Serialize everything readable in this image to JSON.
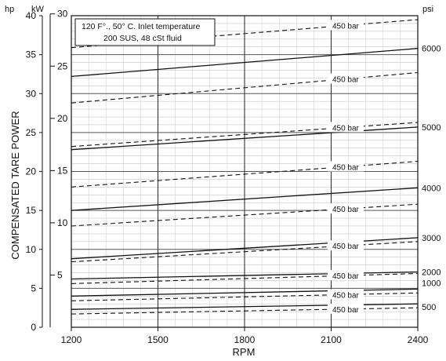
{
  "chart_data": {
    "type": "line",
    "title": "",
    "xlabel": "RPM",
    "ylabel": "COMPENSATED TARE POWER",
    "x_ticks": [
      1200,
      1500,
      1800,
      2100,
      2400
    ],
    "xlim": [
      1200,
      2400
    ],
    "units": {
      "hp": "hp",
      "kw": "kW",
      "psi": "psi"
    },
    "hp_ticks": [
      0,
      5,
      10,
      15,
      20,
      25,
      30,
      35,
      40
    ],
    "kw_ticks": [
      5,
      10,
      15,
      20,
      25,
      30
    ],
    "psi_ticks": [
      500,
      1000,
      2000,
      3000,
      4000,
      5000,
      6000
    ],
    "ylim_hp": [
      0,
      40
    ],
    "hp_per_kw": 1.341,
    "grid": true,
    "annotation": {
      "line1": "120 F°., 50° C. Inlet temperature",
      "line2": "200 SUS, 48 cSt fluid"
    },
    "dashed_label": "450 bar",
    "series": [
      {
        "psi": 500,
        "style": "solid",
        "x": [
          1200,
          2400
        ],
        "y": [
          2.3,
          3.0
        ]
      },
      {
        "psi": 500,
        "style": "dashed",
        "x": [
          1200,
          2400
        ],
        "y": [
          1.7,
          2.5
        ]
      },
      {
        "psi": 1000,
        "style": "solid",
        "x": [
          1200,
          2400
        ],
        "y": [
          4.0,
          4.9
        ]
      },
      {
        "psi": 1000,
        "style": "dashed",
        "x": [
          1200,
          2400
        ],
        "y": [
          3.4,
          4.4
        ]
      },
      {
        "psi": 2000,
        "style": "solid",
        "x": [
          1200,
          2400
        ],
        "y": [
          6.2,
          7.1
        ]
      },
      {
        "psi": 2000,
        "style": "dashed",
        "x": [
          1200,
          2400
        ],
        "y": [
          5.6,
          6.9
        ]
      },
      {
        "psi": 3000,
        "style": "solid",
        "x": [
          1200,
          2400
        ],
        "y": [
          8.8,
          11.5
        ]
      },
      {
        "psi": 3000,
        "style": "dashed",
        "x": [
          1200,
          2400
        ],
        "y": [
          8.4,
          11.0
        ]
      },
      {
        "psi": 4000,
        "style": "solid",
        "x": [
          1200,
          2400
        ],
        "y": [
          15.0,
          17.9
        ]
      },
      {
        "psi": 4000,
        "style": "dashed",
        "x": [
          1200,
          2400
        ],
        "y": [
          13.0,
          15.8
        ]
      },
      {
        "psi": 5000,
        "style": "solid",
        "x": [
          1200,
          2400
        ],
        "y": [
          22.8,
          25.7
        ]
      },
      {
        "psi": 5000,
        "style": "dashed",
        "x": [
          1200,
          2400
        ],
        "y": [
          23.2,
          26.3
        ]
      },
      {
        "psi": 5000,
        "style": "dashed",
        "x": [
          1200,
          2400
        ],
        "y": [
          18.0,
          21.3
        ]
      },
      {
        "psi": 6000,
        "style": "solid",
        "x": [
          1200,
          2400
        ],
        "y": [
          32.2,
          35.8
        ]
      },
      {
        "psi": 6000,
        "style": "dashed",
        "x": [
          1200,
          2400
        ],
        "y": [
          28.8,
          32.7
        ]
      },
      {
        "psi": 6000,
        "style": "dashed",
        "x": [
          1200,
          2400
        ],
        "y": [
          35.9,
          39.5
        ]
      }
    ]
  }
}
